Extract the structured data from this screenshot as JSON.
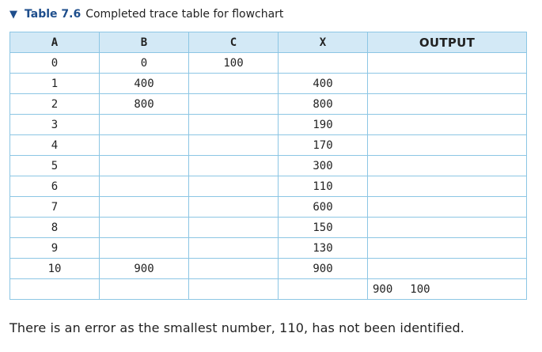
{
  "caption": {
    "label": "Table 7.6",
    "text": "Completed trace table for flowchart"
  },
  "table": {
    "headers": [
      "A",
      "B",
      "C",
      "X",
      "OUTPUT"
    ],
    "rows": [
      [
        "0",
        "0",
        "100",
        "",
        ""
      ],
      [
        "1",
        "400",
        "",
        "400",
        ""
      ],
      [
        "2",
        "800",
        "",
        "800",
        ""
      ],
      [
        "3",
        "",
        "",
        "190",
        ""
      ],
      [
        "4",
        "",
        "",
        "170",
        ""
      ],
      [
        "5",
        "",
        "",
        "300",
        ""
      ],
      [
        "6",
        "",
        "",
        "110",
        ""
      ],
      [
        "7",
        "",
        "",
        "600",
        ""
      ],
      [
        "8",
        "",
        "",
        "150",
        ""
      ],
      [
        "9",
        "",
        "",
        "130",
        ""
      ],
      [
        "10",
        "900",
        "",
        "900",
        ""
      ],
      [
        "",
        "",
        "",
        "",
        ""
      ]
    ],
    "output_values": [
      "900",
      "100"
    ]
  },
  "note": "There is an error as the smallest number, 110, has not been identified.",
  "colors": {
    "accent": "#1e4e8c",
    "header_bg": "#d3e9f6",
    "border": "#8cc6e4"
  }
}
